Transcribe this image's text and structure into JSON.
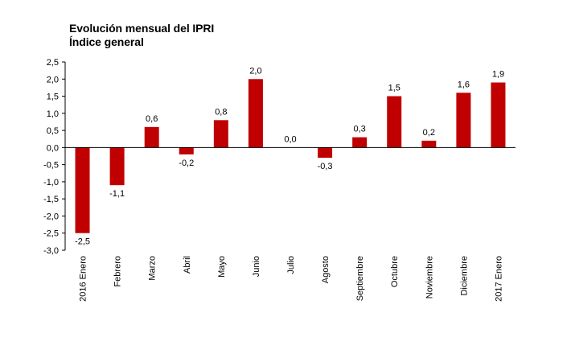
{
  "chart_data": {
    "type": "bar",
    "title": "Evolución mensual del IPRI",
    "subtitle": "Índice general",
    "xlabel": "",
    "ylabel": "",
    "categories": [
      "2016 Enero",
      "Febrero",
      "Marzo",
      "Abril",
      "Mayo",
      "Junio",
      "Julio",
      "Agosto",
      "Septiembre",
      "Octubre",
      "Noviembre",
      "Diciembre",
      "2017 Enero"
    ],
    "values": [
      -2.5,
      -1.1,
      0.6,
      -0.2,
      0.8,
      2.0,
      0.0,
      -0.3,
      0.3,
      1.5,
      0.2,
      1.6,
      1.9
    ],
    "value_labels": [
      "-2,5",
      "-1,1",
      "0,6",
      "-0,2",
      "0,8",
      "2,0",
      "0,0",
      "-0,3",
      "0,3",
      "1,5",
      "0,2",
      "1,6",
      "1,9"
    ],
    "ylim": [
      -3.0,
      2.5
    ],
    "yticks": [
      2.5,
      2.0,
      1.5,
      1.0,
      0.5,
      0.0,
      -0.5,
      -1.0,
      -1.5,
      -2.0,
      -2.5,
      -3.0
    ],
    "ytick_labels": [
      "2,5",
      "2,0",
      "1,5",
      "1,0",
      "0,5",
      "0,0",
      "-0,5",
      "-1,0",
      "-1,5",
      "-2,0",
      "-2,5",
      "-3,0"
    ],
    "grid": false,
    "legend": "none",
    "bar_color": "#c00000"
  }
}
